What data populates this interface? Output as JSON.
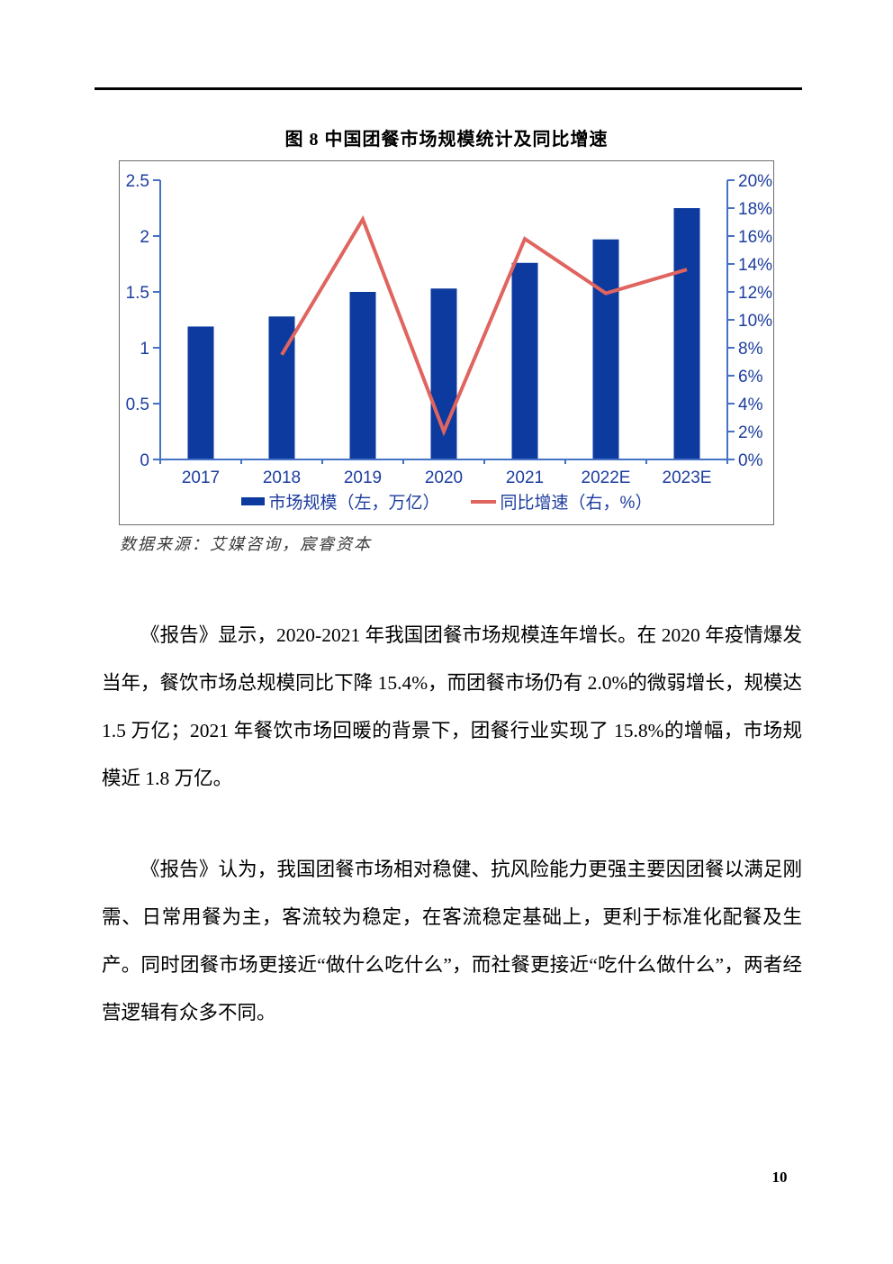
{
  "figure": {
    "title": "图 8 中国团餐市场规模统计及同比增速",
    "source": "数据来源：艾媒咨询，宸睿资本"
  },
  "chart_data": {
    "type": "bar",
    "subtype": "combo-bar-line-dual-axis",
    "title": "图 8 中国团餐市场规模统计及同比增速",
    "categories": [
      "2017",
      "2018",
      "2019",
      "2020",
      "2021",
      "2022E",
      "2023E"
    ],
    "series": [
      {
        "name": "市场规模（左，万亿）",
        "type": "bar",
        "axis": "left",
        "color": "#0d3a9e",
        "values": [
          1.19,
          1.28,
          1.5,
          1.53,
          1.76,
          1.97,
          2.25
        ]
      },
      {
        "name": "同比增速（右，%）",
        "type": "line",
        "axis": "right",
        "color": "#e0645f",
        "values": [
          null,
          7.5,
          17.2,
          2.0,
          15.8,
          11.9,
          13.6
        ]
      }
    ],
    "left_axis": {
      "min": 0,
      "max": 2.5,
      "step": 0.5,
      "ticks": [
        "2.5",
        "2",
        "1.5",
        "1",
        "0.5",
        "0"
      ]
    },
    "right_axis": {
      "min": 0,
      "max": 20,
      "step": 2,
      "ticks": [
        "20%",
        "18%",
        "16%",
        "14%",
        "12%",
        "10%",
        "8%",
        "6%",
        "4%",
        "2%",
        "0%"
      ]
    },
    "legend_position": "bottom",
    "grid": false
  },
  "chart_style": {
    "axis_color": "#4472c4",
    "label_color": "#1c3d9e",
    "frame_border": "#6e6e6e"
  },
  "body": {
    "paragraph1": "《报告》显示，2020-2021 年我国团餐市场规模连年增长。在 2020 年疫情爆发当年，餐饮市场总规模同比下降 15.4%，而团餐市场仍有 2.0%的微弱增长，规模达 1.5 万亿；2021 年餐饮市场回暖的背景下，团餐行业实现了 15.8%的增幅，市场规模近 1.8 万亿。",
    "paragraph2": "《报告》认为，我国团餐市场相对稳健、抗风险能力更强主要因团餐以满足刚需、日常用餐为主，客流较为稳定，在客流稳定基础上，更利于标准化配餐及生产。同时团餐市场更接近“做什么吃什么”，而社餐更接近“吃什么做什么”，两者经营逻辑有众多不同。"
  },
  "page": {
    "number": "10"
  }
}
